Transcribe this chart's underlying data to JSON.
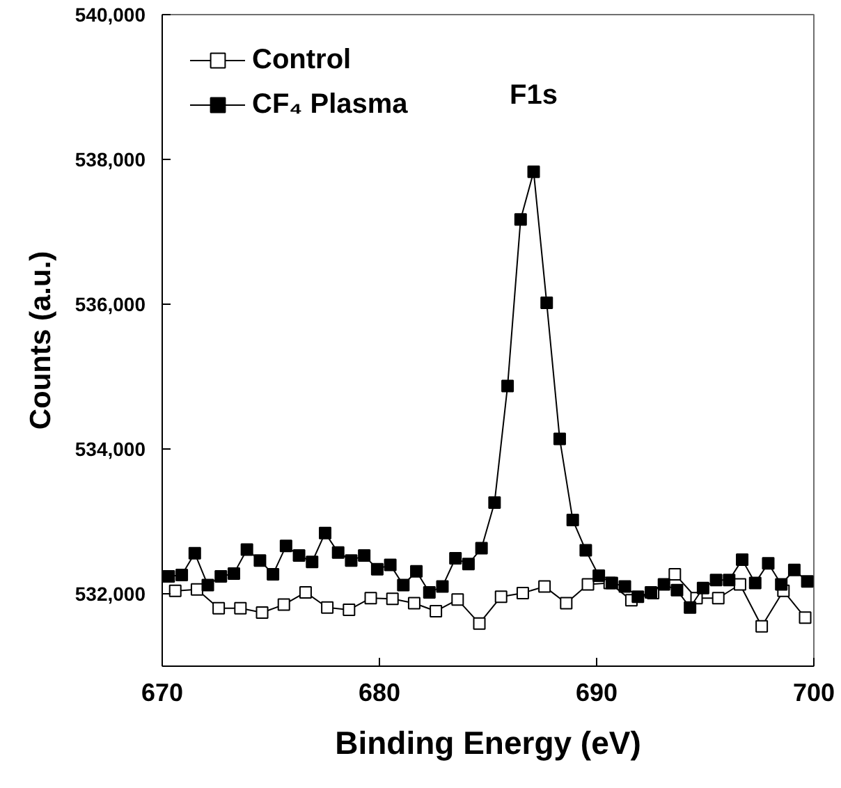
{
  "chart_data": {
    "type": "line",
    "xlabel": "Binding Energy (eV)",
    "ylabel": "Counts (a.u.)",
    "xlim": [
      670,
      700
    ],
    "ylim": [
      531000,
      540000
    ],
    "xticks": [
      670,
      680,
      690,
      700
    ],
    "yticks": [
      {
        "value": 532000,
        "label": "532,000"
      },
      {
        "value": 534000,
        "label": "534,000"
      },
      {
        "value": 536000,
        "label": "536,000"
      },
      {
        "value": 538000,
        "label": "538,000"
      },
      {
        "value": 540000,
        "label": "540,000"
      }
    ],
    "grid": false,
    "legend": "top left",
    "marker": "square",
    "line_style": "solid",
    "annotations": [
      "F1s"
    ],
    "series": [
      {
        "name": "Control",
        "color": "#000000",
        "x": [
          670.6,
          671.6,
          672.6,
          673.6,
          674.6,
          675.6,
          676.6,
          677.6,
          678.6,
          679.6,
          680.6,
          681.6,
          682.6,
          683.6,
          684.6,
          685.6,
          686.6,
          687.6,
          688.6,
          689.6,
          690.6,
          691.6,
          692.6,
          693.6,
          694.6,
          695.6,
          696.6,
          697.6,
          698.6,
          699.6
        ],
        "values": [
          532040,
          532060,
          531800,
          531800,
          531740,
          531850,
          532020,
          531810,
          531780,
          531940,
          531930,
          531870,
          531760,
          531920,
          531590,
          531960,
          532010,
          532100,
          531870,
          532130,
          532150,
          531910,
          532010,
          532270,
          531940,
          531940,
          532130,
          531550,
          532040,
          531670
        ]
      },
      {
        "name": "CF₄ Plasma",
        "color": "#000000",
        "x": [
          670.3,
          670.9,
          671.5,
          672.1,
          672.7,
          673.3,
          673.9,
          674.5,
          675.1,
          675.7,
          676.3,
          676.9,
          677.5,
          678.1,
          678.7,
          679.3,
          679.9,
          680.5,
          681.1,
          681.7,
          682.3,
          682.9,
          683.5,
          684.1,
          684.7,
          685.3,
          685.9,
          686.5,
          687.1,
          687.7,
          688.3,
          688.9,
          689.5,
          690.1,
          690.7,
          691.3,
          691.9,
          692.5,
          693.1,
          693.7,
          694.3,
          694.9,
          695.5,
          696.1,
          696.7,
          697.3,
          697.9,
          698.5,
          699.1,
          699.7
        ],
        "values": [
          532240,
          532260,
          532560,
          532120,
          532240,
          532280,
          532610,
          532460,
          532270,
          532660,
          532530,
          532440,
          532840,
          532570,
          532460,
          532530,
          532340,
          532400,
          532120,
          532310,
          532020,
          532100,
          532490,
          532410,
          532630,
          533260,
          534870,
          537170,
          537830,
          536020,
          534140,
          533020,
          532600,
          532250,
          532150,
          532100,
          531960,
          532020,
          532130,
          532050,
          531810,
          532080,
          532190,
          532190,
          532470,
          532150,
          532420,
          532130,
          532330,
          532170
        ]
      }
    ]
  }
}
